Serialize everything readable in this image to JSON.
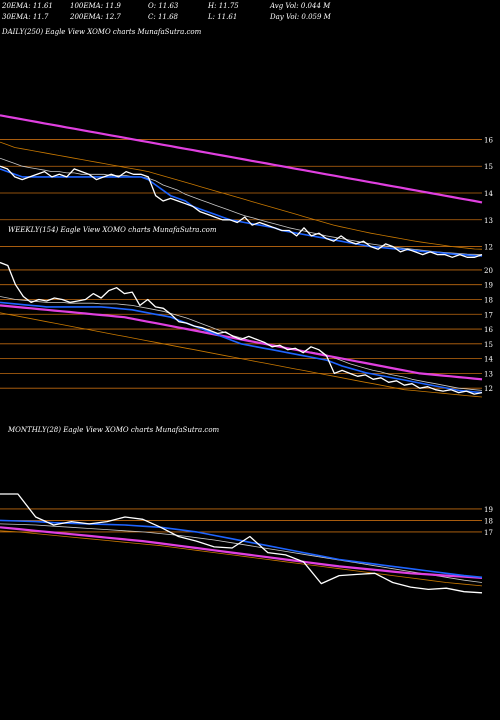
{
  "header": {
    "row1": [
      "20EMA: 11.61",
      "100EMA: 11.9",
      "O: 11.63",
      "H: 11.75",
      "Avg Vol: 0.044  M"
    ],
    "row2": [
      "30EMA: 11.7",
      "200EMA: 12.7",
      "C: 11.68",
      "L: 11.61",
      "Day Vol: 0.059 M"
    ]
  },
  "colors": {
    "price": "#ffffff",
    "ema_short": "#c8c8c8",
    "ema_mid": "#1e64ff",
    "ema_long": "#c87800",
    "ema_200": "#e040e0",
    "gridline": "#c06a10"
  },
  "chart_data": [
    {
      "type": "line",
      "title": "DAILY(250) Eagle   View  XOMO charts MunafaSutra.com",
      "yticks": [
        16,
        15,
        14,
        13,
        12
      ],
      "ylim": [
        11.2,
        16.8
      ],
      "x_count": 250,
      "series": [
        {
          "role": "price",
          "values": [
            15.0,
            14.9,
            14.6,
            14.5,
            14.6,
            14.7,
            14.8,
            14.6,
            14.7,
            14.6,
            14.9,
            14.8,
            14.7,
            14.5,
            14.6,
            14.7,
            14.6,
            14.8,
            14.7,
            14.7,
            14.6,
            13.9,
            13.7,
            13.8,
            13.7,
            13.6,
            13.5,
            13.3,
            13.2,
            13.1,
            13.0,
            13.0,
            12.9,
            13.1,
            12.8,
            12.9,
            12.8,
            12.7,
            12.6,
            12.6,
            12.4,
            12.7,
            12.4,
            12.5,
            12.3,
            12.2,
            12.4,
            12.2,
            12.1,
            12.2,
            12.0,
            11.9,
            12.1,
            12.0,
            11.8,
            11.9,
            11.8,
            11.7,
            11.8,
            11.7,
            11.7,
            11.6,
            11.7,
            11.6,
            11.6,
            11.7
          ]
        },
        {
          "role": "ema_mid",
          "values": [
            14.9,
            14.8,
            14.7,
            14.6,
            14.6,
            14.6,
            14.6,
            14.6,
            14.6,
            14.6,
            14.6,
            14.6,
            14.6,
            14.6,
            14.6,
            14.6,
            14.6,
            14.6,
            14.6,
            14.6,
            14.5,
            14.3,
            14.1,
            13.9,
            13.8,
            13.7,
            13.5,
            13.4,
            13.3,
            13.2,
            13.1,
            13.0,
            12.95,
            12.9,
            12.85,
            12.8,
            12.75,
            12.7,
            12.6,
            12.55,
            12.5,
            12.45,
            12.4,
            12.35,
            12.3,
            12.25,
            12.2,
            12.15,
            12.1,
            12.05,
            12.0,
            11.98,
            11.95,
            11.92,
            11.9,
            11.88,
            11.85,
            11.82,
            11.8,
            11.78,
            11.75,
            11.72,
            11.7,
            11.68,
            11.66,
            11.65
          ]
        },
        {
          "role": "ema_short",
          "values": [
            15.3,
            15.2,
            15.1,
            15.0,
            14.95,
            14.9,
            14.85,
            14.8,
            14.8,
            14.75,
            14.75,
            14.7,
            14.7,
            14.7,
            14.7,
            14.65,
            14.65,
            14.65,
            14.6,
            14.6,
            14.55,
            14.45,
            14.3,
            14.2,
            14.1,
            13.95,
            13.85,
            13.75,
            13.65,
            13.55,
            13.45,
            13.35,
            13.25,
            13.15,
            13.08,
            13.0,
            12.92,
            12.85,
            12.78,
            12.7,
            12.64,
            12.58,
            12.52,
            12.46,
            12.4,
            12.35,
            12.3,
            12.25,
            12.2,
            12.15,
            12.1,
            12.06,
            12.02,
            11.98,
            11.95,
            11.92,
            11.89,
            11.86,
            11.83,
            11.8,
            11.78,
            11.76,
            11.74,
            11.72,
            11.71,
            11.7
          ]
        },
        {
          "role": "ema_long",
          "values": [
            15.9,
            15.8,
            15.7,
            15.65,
            15.6,
            15.55,
            15.5,
            15.45,
            15.4,
            15.35,
            15.3,
            15.25,
            15.2,
            15.15,
            15.1,
            15.05,
            15.0,
            14.95,
            14.9,
            14.85,
            14.8,
            14.72,
            14.64,
            14.56,
            14.48,
            14.4,
            14.32,
            14.24,
            14.16,
            14.08,
            14.0,
            13.92,
            13.84,
            13.76,
            13.68,
            13.6,
            13.52,
            13.44,
            13.36,
            13.28,
            13.2,
            13.12,
            13.04,
            12.96,
            12.88,
            12.8,
            12.74,
            12.68,
            12.62,
            12.56,
            12.5,
            12.45,
            12.4,
            12.35,
            12.3,
            12.25,
            12.2,
            12.16,
            12.12,
            12.08,
            12.04,
            12.0,
            11.97,
            11.94,
            11.91,
            11.9
          ]
        },
        {
          "role": "ema_200",
          "values": [
            16.9,
            16.85,
            16.8,
            16.75,
            16.7,
            16.65,
            16.6,
            16.55,
            16.5,
            16.45,
            16.4,
            16.35,
            16.3,
            16.25,
            16.2,
            16.15,
            16.1,
            16.05,
            16.0,
            15.95,
            15.9,
            15.85,
            15.8,
            15.75,
            15.7,
            15.65,
            15.6,
            15.55,
            15.5,
            15.45,
            15.4,
            15.35,
            15.3,
            15.25,
            15.2,
            15.15,
            15.1,
            15.05,
            15.0,
            14.95,
            14.9,
            14.85,
            14.8,
            14.75,
            14.7,
            14.65,
            14.6,
            14.55,
            14.5,
            14.45,
            14.4,
            14.35,
            14.3,
            14.25,
            14.2,
            14.15,
            14.1,
            14.05,
            14.0,
            13.95,
            13.9,
            13.85,
            13.8,
            13.75,
            13.7,
            13.65
          ]
        }
      ]
    },
    {
      "type": "line",
      "title": "WEEKLY(154) Eagle   View  XOMO charts MunafaSutra.com",
      "yticks": [
        20,
        19,
        18,
        17,
        16,
        15,
        14,
        13,
        12
      ],
      "ylim": [
        11.2,
        20.4
      ],
      "x_count": 154,
      "series": [
        {
          "role": "price",
          "values": [
            20.5,
            20.3,
            19.0,
            18.2,
            17.8,
            18.0,
            17.9,
            18.1,
            18.0,
            17.8,
            17.9,
            18.0,
            18.4,
            18.1,
            18.6,
            18.8,
            18.4,
            18.5,
            17.6,
            18.0,
            17.5,
            17.4,
            17.0,
            16.5,
            16.4,
            16.2,
            16.1,
            15.9,
            15.7,
            15.8,
            15.5,
            15.3,
            15.5,
            15.3,
            15.1,
            14.8,
            14.9,
            14.6,
            14.7,
            14.4,
            14.8,
            14.6,
            14.2,
            13.0,
            13.2,
            13.0,
            12.8,
            12.9,
            12.6,
            12.7,
            12.4,
            12.5,
            12.2,
            12.3,
            12.0,
            12.1,
            11.9,
            11.8,
            11.9,
            11.7,
            11.8,
            11.6,
            11.7
          ]
        },
        {
          "role": "ema_mid",
          "values": [
            17.8,
            17.75,
            17.7,
            17.65,
            17.6,
            17.55,
            17.5,
            17.5,
            17.5,
            17.5,
            17.5,
            17.5,
            17.5,
            17.5,
            17.45,
            17.4,
            17.35,
            17.3,
            17.2,
            17.1,
            17.0,
            16.9,
            16.8,
            16.6,
            16.4,
            16.2,
            16.0,
            15.8,
            15.6,
            15.4,
            15.2,
            15.0,
            14.9,
            14.8,
            14.7,
            14.6,
            14.5,
            14.4,
            14.3,
            14.2,
            14.1,
            14.0,
            13.9,
            13.7,
            13.5,
            13.35,
            13.2,
            13.05,
            12.95,
            12.85,
            12.75,
            12.65,
            12.55,
            12.45,
            12.35,
            12.25,
            12.15,
            12.05,
            11.95,
            11.85,
            11.8,
            11.75,
            11.7
          ]
        },
        {
          "role": "ema_short",
          "values": [
            18.2,
            18.1,
            18.0,
            17.95,
            17.9,
            17.85,
            17.8,
            17.8,
            17.8,
            17.75,
            17.75,
            17.75,
            17.75,
            17.7,
            17.7,
            17.7,
            17.65,
            17.6,
            17.5,
            17.4,
            17.3,
            17.2,
            17.05,
            16.9,
            16.75,
            16.55,
            16.35,
            16.15,
            15.95,
            15.75,
            15.55,
            15.4,
            15.25,
            15.1,
            15.0,
            14.9,
            14.8,
            14.7,
            14.6,
            14.5,
            14.45,
            14.35,
            14.25,
            14.05,
            13.85,
            13.65,
            13.5,
            13.35,
            13.2,
            13.1,
            12.95,
            12.85,
            12.75,
            12.6,
            12.5,
            12.4,
            12.3,
            12.2,
            12.1,
            12.0,
            11.95,
            11.9,
            11.85
          ]
        },
        {
          "role": "ema_long",
          "values": [
            17.1,
            17.0,
            16.9,
            16.8,
            16.7,
            16.6,
            16.5,
            16.4,
            16.3,
            16.2,
            16.1,
            16.0,
            15.9,
            15.8,
            15.7,
            15.6,
            15.5,
            15.4,
            15.3,
            15.2,
            15.1,
            15.0,
            14.9,
            14.8,
            14.7,
            14.6,
            14.5,
            14.4,
            14.3,
            14.2,
            14.1,
            14.0,
            13.9,
            13.8,
            13.7,
            13.6,
            13.5,
            13.4,
            13.3,
            13.2,
            13.1,
            13.0,
            12.9,
            12.8,
            12.7,
            12.6,
            12.5,
            12.4,
            12.3,
            12.2,
            12.1,
            12.0,
            11.9,
            11.85,
            11.8,
            11.75,
            11.7,
            11.65,
            11.6,
            11.55,
            11.5,
            11.45,
            11.4
          ]
        },
        {
          "role": "ema_200",
          "values": [
            17.6,
            17.55,
            17.5,
            17.45,
            17.4,
            17.35,
            17.3,
            17.25,
            17.2,
            17.15,
            17.1,
            17.05,
            17.0,
            16.95,
            16.9,
            16.85,
            16.8,
            16.7,
            16.6,
            16.5,
            16.4,
            16.3,
            16.2,
            16.1,
            16.0,
            15.9,
            15.8,
            15.7,
            15.6,
            15.5,
            15.4,
            15.3,
            15.2,
            15.1,
            15.0,
            14.9,
            14.8,
            14.7,
            14.6,
            14.5,
            14.4,
            14.3,
            14.2,
            14.1,
            14.0,
            13.9,
            13.8,
            13.7,
            13.6,
            13.5,
            13.4,
            13.3,
            13.2,
            13.1,
            13.0,
            12.95,
            12.9,
            12.85,
            12.8,
            12.75,
            12.7,
            12.65,
            12.6
          ]
        }
      ]
    },
    {
      "type": "line",
      "title": "MONTHLY(28) Eagle   View  XOMO charts MunafaSutra.com",
      "yticks": [
        19,
        18,
        17
      ],
      "ylim": [
        10.9,
        20.3
      ],
      "x_count": 28,
      "series": [
        {
          "role": "price",
          "values": [
            20.3,
            20.3,
            18.3,
            17.6,
            17.9,
            17.7,
            17.9,
            18.3,
            18.1,
            17.4,
            16.6,
            16.2,
            15.7,
            15.6,
            16.6,
            15.2,
            15.0,
            14.4,
            12.5,
            13.2,
            13.3,
            13.4,
            12.6,
            12.2,
            12.0,
            12.1,
            11.8,
            11.7
          ]
        },
        {
          "role": "ema_mid",
          "values": [
            18.0,
            17.95,
            17.9,
            17.8,
            17.75,
            17.7,
            17.65,
            17.6,
            17.5,
            17.4,
            17.2,
            17.0,
            16.7,
            16.4,
            16.1,
            15.8,
            15.5,
            15.2,
            14.9,
            14.6,
            14.4,
            14.2,
            14.0,
            13.8,
            13.6,
            13.4,
            13.2,
            13.05
          ]
        },
        {
          "role": "ema_short",
          "values": [
            17.7,
            17.65,
            17.6,
            17.5,
            17.4,
            17.3,
            17.2,
            17.1,
            17.0,
            16.85,
            16.7,
            16.5,
            16.3,
            16.05,
            15.8,
            15.55,
            15.3,
            15.05,
            14.8,
            14.55,
            14.3,
            14.05,
            13.8,
            13.55,
            13.3,
            13.05,
            12.8,
            12.6
          ]
        },
        {
          "role": "ema_long",
          "values": [
            17.1,
            17.0,
            16.85,
            16.7,
            16.55,
            16.4,
            16.25,
            16.1,
            15.95,
            15.8,
            15.6,
            15.4,
            15.2,
            15.0,
            14.8,
            14.6,
            14.4,
            14.2,
            14.0,
            13.8,
            13.6,
            13.4,
            13.2,
            13.0,
            12.8,
            12.6,
            12.45,
            12.3
          ]
        },
        {
          "role": "ema_200",
          "values": [
            17.4,
            17.25,
            17.1,
            16.95,
            16.8,
            16.65,
            16.5,
            16.35,
            16.2,
            16.0,
            15.8,
            15.6,
            15.4,
            15.2,
            15.0,
            14.8,
            14.6,
            14.4,
            14.2,
            14.0,
            13.85,
            13.7,
            13.55,
            13.4,
            13.3,
            13.2,
            13.1,
            13.0
          ]
        }
      ]
    }
  ]
}
